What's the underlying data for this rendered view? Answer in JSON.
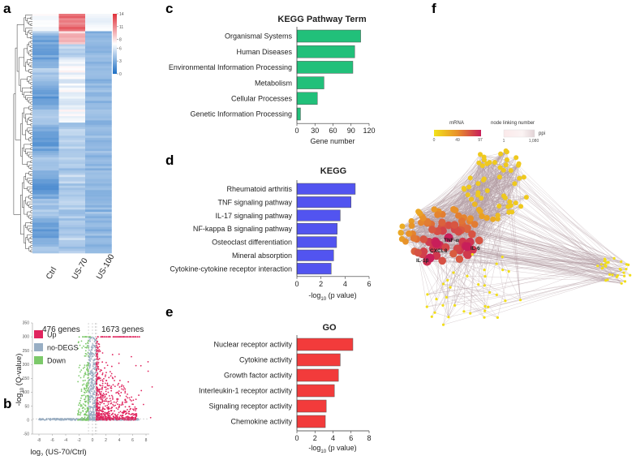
{
  "panels": {
    "a": "a",
    "b": "b",
    "c": "c",
    "d": "d",
    "e": "e",
    "f": "f"
  },
  "chart_data": [
    {
      "id": "a",
      "type": "heatmap",
      "columns": [
        "Ctrl",
        "US-70",
        "US-100"
      ],
      "colorbar": {
        "ticks": [
          "14",
          "11",
          "8",
          "6",
          "3",
          "0"
        ],
        "range": [
          0,
          14
        ],
        "low_color": "#1f6fc4",
        "mid_color": "#ffffff",
        "high_color": "#e0303a"
      }
    },
    {
      "id": "b",
      "type": "scatter",
      "xlabel_main": "log",
      "xlabel_sub": "2",
      "xlabel_rest": " (US-70/Ctrl)",
      "ylabel_main": "-log",
      "ylabel_sub": "10",
      "ylabel_rest": " (Q-value)",
      "xticks": [
        "-8",
        "-6",
        "-4",
        "-2",
        "0",
        "2",
        "4",
        "6",
        "8"
      ],
      "yticks": [
        "350",
        "300",
        "250",
        "200",
        "150",
        "100",
        "50",
        "0",
        "-50"
      ],
      "xlim": [
        -8,
        8
      ],
      "ylim": [
        -50,
        350
      ],
      "annotations": {
        "down_count": "476 genes",
        "up_count": "1673 genes"
      },
      "legend": [
        {
          "label": "Up",
          "color": "#e0245e"
        },
        {
          "label": "no-DEGS",
          "color": "#98aec4"
        },
        {
          "label": "Down",
          "color": "#7cc96a"
        }
      ]
    },
    {
      "id": "c",
      "type": "bar",
      "title": "KEGG Pathway Term",
      "xlabel": "Gene number",
      "categories": [
        "Organismal Systems",
        "Human Diseases",
        "Environmental Information Processing",
        "Metabolism",
        "Cellular Processes",
        "Genetic Information Processing"
      ],
      "values": [
        106,
        96,
        93,
        45,
        34,
        6
      ],
      "xticks": [
        "0",
        "30",
        "60",
        "90",
        "120"
      ],
      "xlim": [
        0,
        120
      ],
      "color": "#21c07a"
    },
    {
      "id": "d",
      "type": "bar",
      "title": "KEGG",
      "xlabel_main": "-log",
      "xlabel_sub": "10",
      "xlabel_rest": " (p value)",
      "categories": [
        "Rheumatoid arthritis",
        "TNF signaling pathway",
        "IL-17 signaling pathway",
        "NF-kappa B signaling pathway",
        "Osteoclast differentiation",
        "Mineral absorption",
        "Cytokine-cytokine receptor interaction"
      ],
      "values": [
        4.85,
        4.5,
        3.6,
        3.35,
        3.3,
        3.05,
        2.85
      ],
      "xticks": [
        "0",
        "2",
        "4",
        "6"
      ],
      "xlim": [
        0,
        6
      ],
      "color": "#5254f0"
    },
    {
      "id": "e",
      "type": "bar",
      "title": "GO",
      "xlabel_main": "-log",
      "xlabel_sub": "10",
      "xlabel_rest": " (p value)",
      "categories": [
        "Nuclear receptor activity",
        "Cytokine activity",
        "Growth factor activity",
        "Interleukin-1 receptor activity",
        "Signaling receptor activity",
        "Chemokine activity"
      ],
      "values": [
        6.2,
        4.8,
        4.6,
        4.15,
        3.25,
        3.15
      ],
      "xticks": [
        "0",
        "2",
        "4",
        "6",
        "8"
      ],
      "xlim": [
        0,
        8
      ],
      "color": "#f23b3b"
    },
    {
      "id": "f",
      "type": "network",
      "mrna_legend": {
        "title": "mRNA",
        "ticks": [
          "0",
          "49",
          "97"
        ],
        "colors": [
          "#f2e21a",
          "#e8902a",
          "#c81e5a"
        ]
      },
      "ppi_legend": {
        "title": "node linking number",
        "sub": "ppi",
        "ticks": [
          "1",
          "1,080"
        ]
      },
      "node_labels": [
        "TNF-α",
        "CXCL8",
        "IL-6",
        "IL-1β"
      ],
      "edge_color": "#b39ea3"
    }
  ]
}
